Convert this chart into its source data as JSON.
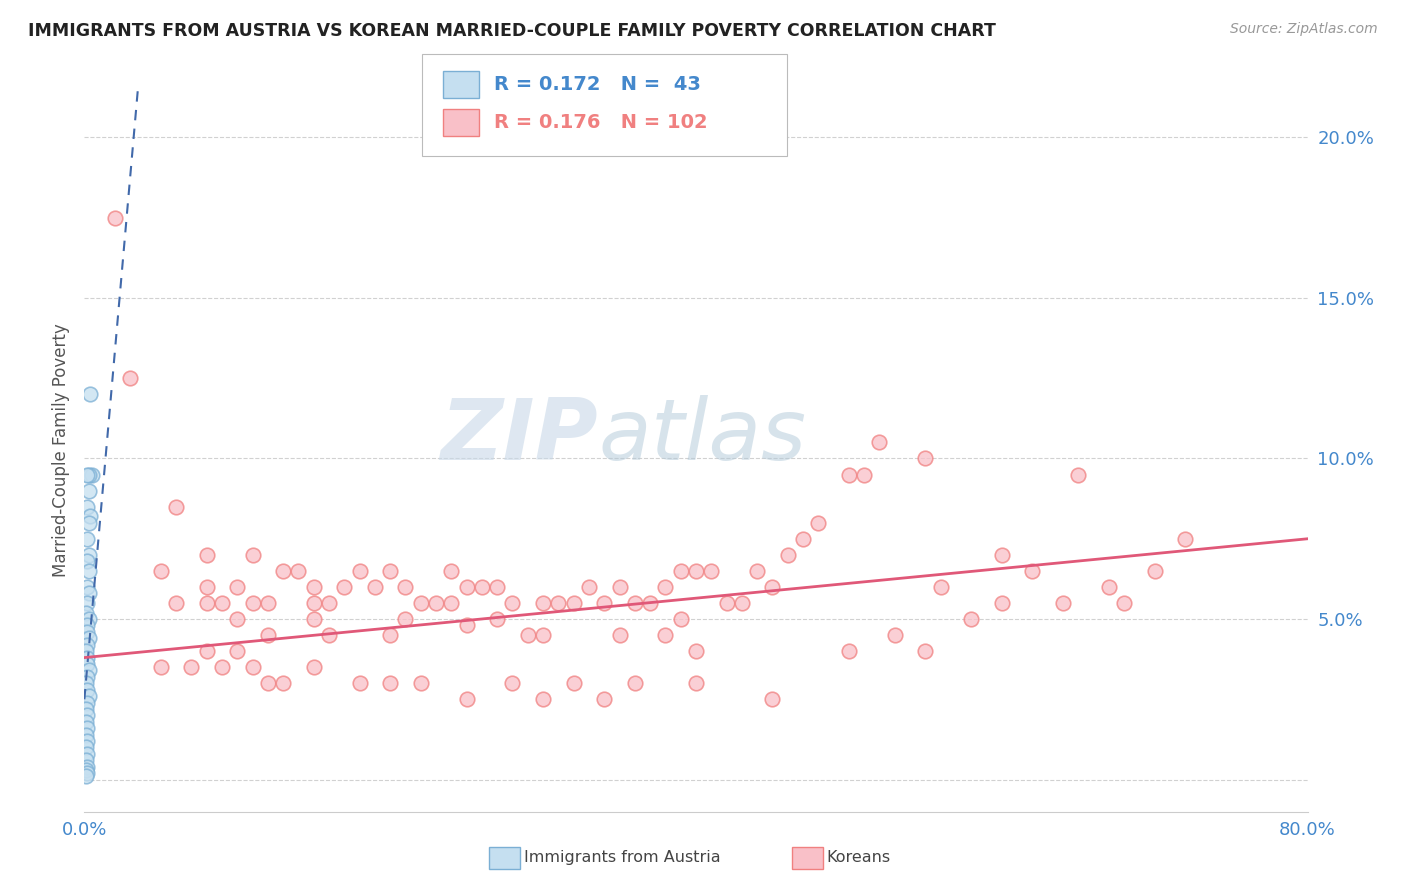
{
  "title": "IMMIGRANTS FROM AUSTRIA VS KOREAN MARRIED-COUPLE FAMILY POVERTY CORRELATION CHART",
  "source": "Source: ZipAtlas.com",
  "ylabel": "Married-Couple Family Poverty",
  "y_ticks": [
    0.0,
    0.05,
    0.1,
    0.15,
    0.2
  ],
  "y_tick_labels": [
    "",
    "5.0%",
    "10.0%",
    "15.0%",
    "20.0%"
  ],
  "legend_austria_R": "0.172",
  "legend_austria_N": "43",
  "legend_korean_R": "0.176",
  "legend_korean_N": "102",
  "legend_items": [
    "Immigrants from Austria",
    "Koreans"
  ],
  "austria_color": "#7bafd4",
  "austria_face": "#c5dff0",
  "korean_color": "#f08080",
  "korean_face": "#f9c0c8",
  "austria_trend_color": "#4169aa",
  "korean_trend_color": "#e05878",
  "watermark_zip": "ZIP",
  "watermark_atlas": "atlas",
  "austria_x": [
    0.004,
    0.005,
    0.003,
    0.002,
    0.003,
    0.002,
    0.004,
    0.003,
    0.002,
    0.003,
    0.002,
    0.003,
    0.002,
    0.003,
    0.002,
    0.001,
    0.003,
    0.002,
    0.002,
    0.003,
    0.002,
    0.001,
    0.002,
    0.002,
    0.003,
    0.002,
    0.001,
    0.002,
    0.003,
    0.002,
    0.001,
    0.002,
    0.001,
    0.002,
    0.001,
    0.002,
    0.001,
    0.002,
    0.001,
    0.002,
    0.001,
    0.002,
    0.001
  ],
  "austria_y": [
    0.12,
    0.095,
    0.095,
    0.095,
    0.09,
    0.085,
    0.082,
    0.08,
    0.075,
    0.07,
    0.068,
    0.065,
    0.06,
    0.058,
    0.055,
    0.052,
    0.05,
    0.048,
    0.046,
    0.044,
    0.042,
    0.04,
    0.038,
    0.036,
    0.034,
    0.032,
    0.03,
    0.028,
    0.026,
    0.024,
    0.022,
    0.02,
    0.018,
    0.016,
    0.014,
    0.012,
    0.01,
    0.008,
    0.006,
    0.004,
    0.003,
    0.002,
    0.001
  ],
  "korean_x": [
    0.02,
    0.03,
    0.05,
    0.06,
    0.06,
    0.08,
    0.08,
    0.08,
    0.09,
    0.1,
    0.1,
    0.11,
    0.11,
    0.12,
    0.12,
    0.13,
    0.14,
    0.15,
    0.15,
    0.15,
    0.16,
    0.16,
    0.17,
    0.18,
    0.19,
    0.2,
    0.2,
    0.21,
    0.21,
    0.22,
    0.23,
    0.24,
    0.24,
    0.25,
    0.25,
    0.26,
    0.27,
    0.27,
    0.28,
    0.29,
    0.3,
    0.3,
    0.31,
    0.32,
    0.33,
    0.34,
    0.35,
    0.35,
    0.36,
    0.37,
    0.38,
    0.38,
    0.39,
    0.39,
    0.4,
    0.4,
    0.41,
    0.42,
    0.43,
    0.44,
    0.45,
    0.46,
    0.47,
    0.48,
    0.5,
    0.51,
    0.52,
    0.53,
    0.55,
    0.56,
    0.58,
    0.6,
    0.62,
    0.64,
    0.65,
    0.67,
    0.68,
    0.7,
    0.72,
    0.05,
    0.07,
    0.08,
    0.09,
    0.1,
    0.11,
    0.12,
    0.13,
    0.15,
    0.18,
    0.2,
    0.22,
    0.25,
    0.28,
    0.3,
    0.32,
    0.34,
    0.36,
    0.4,
    0.45,
    0.5,
    0.55,
    0.6
  ],
  "korean_y": [
    0.175,
    0.125,
    0.065,
    0.085,
    0.055,
    0.07,
    0.06,
    0.055,
    0.055,
    0.06,
    0.05,
    0.07,
    0.055,
    0.055,
    0.045,
    0.065,
    0.065,
    0.055,
    0.05,
    0.06,
    0.055,
    0.045,
    0.06,
    0.065,
    0.06,
    0.065,
    0.045,
    0.06,
    0.05,
    0.055,
    0.055,
    0.065,
    0.055,
    0.06,
    0.048,
    0.06,
    0.06,
    0.05,
    0.055,
    0.045,
    0.055,
    0.045,
    0.055,
    0.055,
    0.06,
    0.055,
    0.06,
    0.045,
    0.055,
    0.055,
    0.06,
    0.045,
    0.065,
    0.05,
    0.065,
    0.04,
    0.065,
    0.055,
    0.055,
    0.065,
    0.06,
    0.07,
    0.075,
    0.08,
    0.095,
    0.095,
    0.105,
    0.045,
    0.1,
    0.06,
    0.05,
    0.055,
    0.065,
    0.055,
    0.095,
    0.06,
    0.055,
    0.065,
    0.075,
    0.035,
    0.035,
    0.04,
    0.035,
    0.04,
    0.035,
    0.03,
    0.03,
    0.035,
    0.03,
    0.03,
    0.03,
    0.025,
    0.03,
    0.025,
    0.03,
    0.025,
    0.03,
    0.03,
    0.025,
    0.04,
    0.04,
    0.07
  ],
  "xmin": 0.0,
  "xmax": 0.8,
  "ymin": -0.01,
  "ymax": 0.215,
  "background_color": "#ffffff",
  "grid_color": "#cccccc",
  "austria_trend_x": [
    0.0,
    0.035
  ],
  "austria_trend_y": [
    0.025,
    0.215
  ],
  "korean_trend_x": [
    0.0,
    0.8
  ],
  "korean_trend_y": [
    0.038,
    0.075
  ]
}
